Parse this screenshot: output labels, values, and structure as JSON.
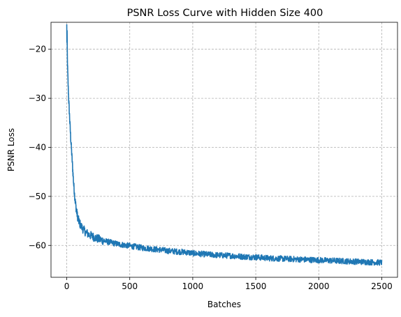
{
  "chart_data": {
    "type": "line",
    "title": "PSNR Loss Curve with Hidden Size 400",
    "xlabel": "Batches",
    "ylabel": "PSNR Loss",
    "xlim": [
      -125,
      2625
    ],
    "ylim": [
      -66.5,
      -14.5
    ],
    "xticks": [
      0,
      500,
      1000,
      1500,
      2000,
      2500
    ],
    "yticks": [
      -20,
      -30,
      -40,
      -50,
      -60
    ],
    "grid": true,
    "series": [
      {
        "name": "",
        "color": "#1f77b4",
        "x": [
          0,
          2,
          5,
          8,
          12,
          16,
          20,
          25,
          30,
          35,
          40,
          45,
          50,
          55,
          60,
          65,
          70,
          75,
          80,
          85,
          90,
          100,
          110,
          120,
          130,
          140,
          150,
          175,
          200,
          225,
          250,
          300,
          350,
          400,
          450,
          500,
          550,
          600,
          650,
          700,
          750,
          800,
          850,
          900,
          950,
          1000,
          1100,
          1200,
          1300,
          1400,
          1500,
          1600,
          1700,
          1800,
          1900,
          2000,
          2100,
          2200,
          2300,
          2400,
          2500
        ],
        "values": [
          -16.0,
          -18.5,
          -22.0,
          -25.0,
          -28.0,
          -30.5,
          -32.5,
          -35.0,
          -37.5,
          -39.5,
          -41.5,
          -43.5,
          -45.5,
          -47.5,
          -49.0,
          -50.5,
          -51.5,
          -52.5,
          -53.3,
          -54.0,
          -54.6,
          -55.3,
          -55.9,
          -56.3,
          -56.7,
          -57.0,
          -57.3,
          -57.8,
          -58.1,
          -58.4,
          -58.7,
          -59.1,
          -59.4,
          -59.7,
          -59.9,
          -60.1,
          -60.3,
          -60.5,
          -60.6,
          -60.8,
          -60.9,
          -61.1,
          -61.2,
          -61.3,
          -61.4,
          -61.6,
          -61.8,
          -62.0,
          -62.1,
          -62.3,
          -62.4,
          -62.6,
          -62.7,
          -62.8,
          -62.9,
          -63.0,
          -63.1,
          -63.2,
          -63.3,
          -63.4,
          -63.5
        ]
      }
    ]
  }
}
